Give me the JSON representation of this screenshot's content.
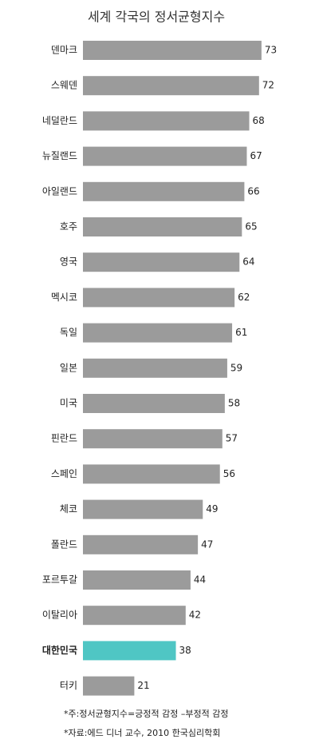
{
  "chart_data": {
    "type": "bar",
    "orientation": "horizontal",
    "title": "세계 각국의 정서균형지수",
    "categories": [
      "덴마크",
      "스웨덴",
      "네덜란드",
      "뉴질랜드",
      "아일랜드",
      "호주",
      "영국",
      "멕시코",
      "독일",
      "일본",
      "미국",
      "핀란드",
      "스페인",
      "체코",
      "폴란드",
      "포르투갈",
      "이탈리아",
      "대한민국",
      "터키"
    ],
    "values": [
      73,
      72,
      68,
      67,
      66,
      65,
      64,
      62,
      61,
      59,
      58,
      57,
      56,
      49,
      47,
      44,
      42,
      38,
      21
    ],
    "colors": [
      "#9b9b9b",
      "#9b9b9b",
      "#9b9b9b",
      "#9b9b9b",
      "#9b9b9b",
      "#9b9b9b",
      "#9b9b9b",
      "#9b9b9b",
      "#9b9b9b",
      "#9b9b9b",
      "#9b9b9b",
      "#9b9b9b",
      "#9b9b9b",
      "#9b9b9b",
      "#9b9b9b",
      "#9b9b9b",
      "#9b9b9b",
      "#4fc6c4",
      "#9b9b9b"
    ],
    "xlim": [
      0,
      75
    ],
    "notes": [
      "*주:정서균형지수=긍정적 감정 –부정적 감정",
      "*자료:에드 디너 교수, 2010 한국심리학회"
    ]
  }
}
